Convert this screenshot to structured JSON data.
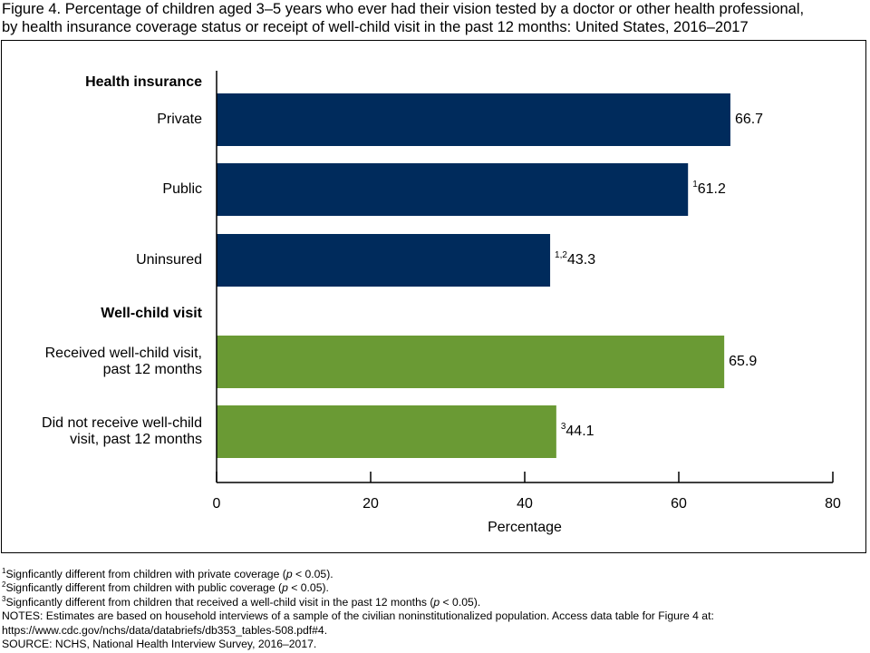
{
  "title_line1": "Figure 4. Percentage of children aged 3–5 years who ever had their vision tested by a doctor or other health professional,",
  "title_line2": "by health insurance coverage status or receipt of well-child visit in the past 12 months: United States, 2016–2017",
  "colors": {
    "insurance": "#002b5c",
    "wellchild": "#6a9a34"
  },
  "chart_data": {
    "type": "bar",
    "orientation": "horizontal",
    "xlabel": "Percentage",
    "xlim": [
      0,
      80
    ],
    "xticks": [
      0,
      20,
      40,
      60,
      80
    ],
    "groups": [
      {
        "heading": "Health insurance",
        "color": "#002b5c",
        "bars": [
          {
            "label_lines": [
              "Private"
            ],
            "value": 66.7,
            "sup": "",
            "value_label": "66.7"
          },
          {
            "label_lines": [
              "Public"
            ],
            "value": 61.2,
            "sup": "1",
            "value_label": "61.2"
          },
          {
            "label_lines": [
              "Uninsured"
            ],
            "value": 43.3,
            "sup": "1,2",
            "value_label": "43.3"
          }
        ]
      },
      {
        "heading": "Well-child visit",
        "color": "#6a9a34",
        "bars": [
          {
            "label_lines": [
              "Received well-child visit,",
              "past 12 months"
            ],
            "value": 65.9,
            "sup": "",
            "value_label": "65.9"
          },
          {
            "label_lines": [
              "Did not receive well-child",
              "visit, past 12 months"
            ],
            "value": 44.1,
            "sup": "3",
            "value_label": "44.1"
          }
        ]
      }
    ]
  },
  "footnotes": [
    {
      "sup": "1",
      "pre": "Signficantly different from children with private coverage (",
      "p": "p",
      "post": " < 0.05)."
    },
    {
      "sup": "2",
      "pre": "Signficantly different from children with public coverage (",
      "p": "p",
      "post": " < 0.05)."
    },
    {
      "sup": "3",
      "pre": "Signficantly different from children that received a well-child visit in the past 12 months (",
      "p": "p",
      "post": " < 0.05)."
    }
  ],
  "notes_line1": "NOTES: Estimates are based on household interviews of a sample of the civilian noninstitutionalized population. Access data table for Figure 4 at:",
  "notes_line2": "https://www.cdc.gov/nchs/data/databriefs/db353_tables-508.pdf#4.",
  "source": "SOURCE: NCHS, National Health Interview Survey, 2016–2017."
}
